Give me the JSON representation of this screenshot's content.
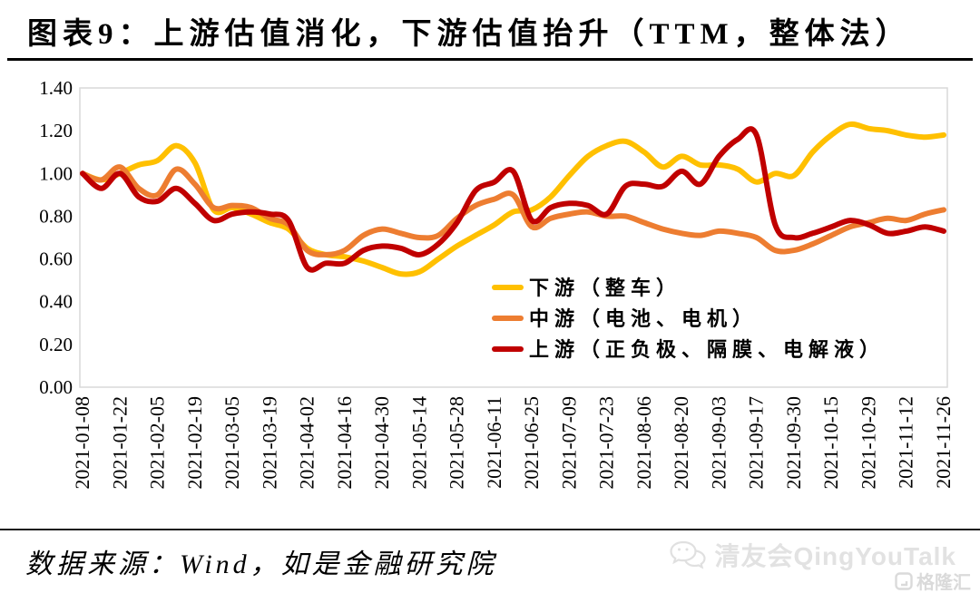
{
  "title": "图表9：上游估值消化，下游估值抬升（TTM，整体法）",
  "footer": {
    "source": "数据来源：Wind，如是金融研究院"
  },
  "watermark": {
    "name": "清友会QingYouTalk",
    "logo_text": "格隆汇"
  },
  "colors": {
    "downstream": "#FFC000",
    "midstream": "#ED7D31",
    "upstream": "#C00000",
    "plot_border": "#D9D9D9",
    "rule": "#000000",
    "watermark": "#E2E2E2"
  },
  "chart_data": {
    "type": "line",
    "title": "图表9：上游估值消化，下游估值抬升（TTM，整体法）",
    "ylim": [
      0.0,
      1.4
    ],
    "yticks": [
      "0.00",
      "0.20",
      "0.40",
      "0.60",
      "0.80",
      "1.00",
      "1.20",
      "1.40"
    ],
    "grid": false,
    "legend_position": "inside-right-middle",
    "x": [
      "2021-01-08",
      "2021-01-15",
      "2021-01-22",
      "2021-01-29",
      "2021-02-05",
      "2021-02-12",
      "2021-02-19",
      "2021-02-26",
      "2021-03-05",
      "2021-03-12",
      "2021-03-19",
      "2021-03-26",
      "2021-04-02",
      "2021-04-09",
      "2021-04-16",
      "2021-04-23",
      "2021-04-30",
      "2021-05-07",
      "2021-05-14",
      "2021-05-21",
      "2021-05-28",
      "2021-06-04",
      "2021-06-11",
      "2021-06-18",
      "2021-06-25",
      "2021-07-02",
      "2021-07-09",
      "2021-07-16",
      "2021-07-23",
      "2021-07-30",
      "2021-08-06",
      "2021-08-13",
      "2021-08-20",
      "2021-08-27",
      "2021-09-03",
      "2021-09-10",
      "2021-09-17",
      "2021-09-24",
      "2021-09-30",
      "2021-10-08",
      "2021-10-15",
      "2021-10-22",
      "2021-10-29",
      "2021-11-05",
      "2021-11-12",
      "2021-11-19",
      "2021-11-26"
    ],
    "x_tick_labels": [
      "2021-01-08",
      "2021-01-22",
      "2021-02-05",
      "2021-02-19",
      "2021-03-05",
      "2021-03-19",
      "2021-04-02",
      "2021-04-16",
      "2021-04-30",
      "2021-05-14",
      "2021-05-28",
      "2021-06-11",
      "2021-06-25",
      "2021-07-09",
      "2021-07-23",
      "2021-08-06",
      "2021-08-20",
      "2021-09-03",
      "2021-09-17",
      "2021-09-30",
      "2021-10-15",
      "2021-10-29",
      "2021-11-12",
      "2021-11-26"
    ],
    "series": [
      {
        "name": "下游（整车）",
        "key": "downstream",
        "color": "#FFC000",
        "values": [
          1.0,
          0.97,
          1.0,
          1.04,
          1.06,
          1.13,
          1.05,
          0.83,
          0.84,
          0.81,
          0.77,
          0.74,
          0.65,
          0.62,
          0.61,
          0.59,
          0.56,
          0.53,
          0.54,
          0.6,
          0.66,
          0.71,
          0.76,
          0.82,
          0.83,
          0.89,
          0.99,
          1.08,
          1.13,
          1.15,
          1.1,
          1.03,
          1.08,
          1.04,
          1.04,
          1.02,
          0.96,
          1.0,
          0.99,
          1.1,
          1.18,
          1.23,
          1.21,
          1.2,
          1.18,
          1.17,
          1.18
        ]
      },
      {
        "name": "中游（电池、电机）",
        "key": "midstream",
        "color": "#ED7D31",
        "values": [
          1.0,
          0.97,
          1.03,
          0.93,
          0.9,
          1.02,
          0.95,
          0.84,
          0.85,
          0.84,
          0.79,
          0.76,
          0.64,
          0.62,
          0.64,
          0.71,
          0.74,
          0.72,
          0.7,
          0.71,
          0.79,
          0.85,
          0.88,
          0.9,
          0.75,
          0.79,
          0.81,
          0.82,
          0.8,
          0.8,
          0.77,
          0.74,
          0.72,
          0.71,
          0.73,
          0.72,
          0.7,
          0.64,
          0.64,
          0.67,
          0.71,
          0.75,
          0.77,
          0.79,
          0.78,
          0.81,
          0.83
        ]
      },
      {
        "name": "上游（正负极、隔膜、电解液）",
        "key": "upstream",
        "color": "#C00000",
        "values": [
          1.0,
          0.93,
          1.0,
          0.89,
          0.87,
          0.93,
          0.86,
          0.78,
          0.81,
          0.82,
          0.81,
          0.78,
          0.56,
          0.58,
          0.58,
          0.64,
          0.66,
          0.65,
          0.62,
          0.67,
          0.77,
          0.92,
          0.96,
          1.01,
          0.78,
          0.84,
          0.86,
          0.85,
          0.81,
          0.94,
          0.95,
          0.94,
          1.01,
          0.95,
          1.08,
          1.16,
          1.18,
          0.76,
          0.7,
          0.72,
          0.75,
          0.78,
          0.76,
          0.72,
          0.73,
          0.75,
          0.73
        ]
      }
    ]
  }
}
